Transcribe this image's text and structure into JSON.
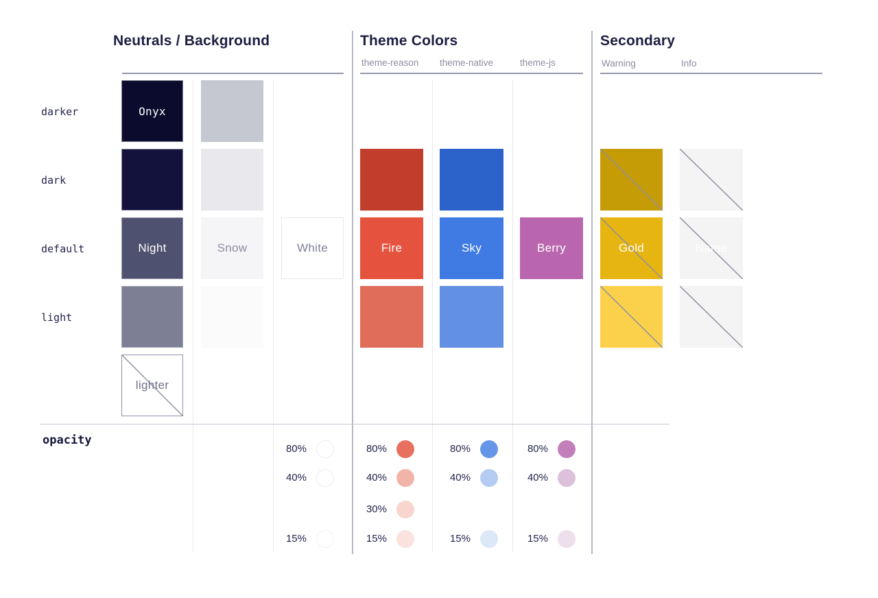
{
  "sections": [
    {
      "id": "neutrals",
      "title": "Neutrals / Background",
      "sub_labels": []
    },
    {
      "id": "theme",
      "title": "Theme Colors",
      "sub_labels": [
        "theme-reason",
        "theme-native",
        "theme-js"
      ]
    },
    {
      "id": "secondary",
      "title": "Secondary",
      "sub_labels": [
        "Warning",
        "Info"
      ]
    }
  ],
  "row_labels": [
    "darker",
    "dark",
    "default",
    "light"
  ],
  "opacity_label": "opacity",
  "swatches": [
    {
      "col": "n1",
      "row": "darker",
      "color": "#0B0B2D",
      "label": "Onyx",
      "label_color": "#FFFFFF",
      "mono_label": true,
      "bordered": true
    },
    {
      "col": "n1",
      "row": "dark",
      "color": "#12123C",
      "bordered": true
    },
    {
      "col": "n1",
      "row": "default",
      "color": "#4F5170",
      "label": "Night",
      "label_color": "#FFFFFF",
      "bordered": true
    },
    {
      "col": "n1",
      "row": "light",
      "color": "#7D7F95",
      "bordered": true
    },
    {
      "col": "n1",
      "row": "lighter",
      "color": "#FFFFFF",
      "label": "lighter",
      "label_color": "#6F7289",
      "outline": "#8E90A8",
      "diagonal": true
    },
    {
      "col": "n2",
      "row": "darker",
      "color": "#C5C7D1"
    },
    {
      "col": "n2",
      "row": "dark",
      "color": "#E9E9ED"
    },
    {
      "col": "n2",
      "row": "default",
      "color": "#F5F5F7",
      "label": "Snow",
      "label_color": "#8B8DA0"
    },
    {
      "col": "n2",
      "row": "light",
      "color": "#FBFBFC"
    },
    {
      "col": "n3",
      "row": "default",
      "color": "#FFFFFF",
      "label": "White",
      "label_color": "#7E819A",
      "outline": "#E8E8ED"
    },
    {
      "col": "t1",
      "row": "dark",
      "color": "#C13E2D"
    },
    {
      "col": "t1",
      "row": "default",
      "color": "#E5523D",
      "label": "Fire",
      "label_color": "#FFFFFF"
    },
    {
      "col": "t1",
      "row": "light",
      "color": "#E06C5A"
    },
    {
      "col": "t2",
      "row": "dark",
      "color": "#2C63CA"
    },
    {
      "col": "t2",
      "row": "default",
      "color": "#3F7BE2",
      "label": "Sky",
      "label_color": "#FFFFFF"
    },
    {
      "col": "t2",
      "row": "light",
      "color": "#6290E3"
    },
    {
      "col": "t3",
      "row": "default",
      "color": "#B966AE",
      "label": "Berry",
      "label_color": "#FFFFFF"
    },
    {
      "col": "s1",
      "row": "dark",
      "color": "#C69C06",
      "diagonal": true
    },
    {
      "col": "s1",
      "row": "default",
      "color": "#E6B511",
      "label": "Gold",
      "label_color": "#FFFFFF",
      "diagonal": true
    },
    {
      "col": "s1",
      "row": "light",
      "color": "#FBD14B",
      "diagonal": true
    },
    {
      "col": "s2",
      "row": "dark",
      "color": "#F4F4F5",
      "diagonal": true
    },
    {
      "col": "s2",
      "row": "default",
      "color": "#F4F4F5",
      "label": "Name",
      "label_color": "#FFFFFF",
      "diagonal": true
    },
    {
      "col": "s2",
      "row": "light",
      "color": "#F4F4F5",
      "diagonal": true
    }
  ],
  "opacity_groups": [
    {
      "col": "n3",
      "dots": [
        {
          "pct": "80%",
          "color": "#FFFFFF",
          "ring": "#EDEDF1"
        },
        {
          "pct": "40%",
          "color": "#FFFFFF",
          "ring": "#EDEDF1"
        },
        {
          "pct": "15%",
          "color": "#FFFFFF",
          "ring": "#F1F1F3"
        }
      ]
    },
    {
      "col": "t1",
      "dots": [
        {
          "pct": "80%",
          "color": "#E7705F"
        },
        {
          "pct": "40%",
          "color": "#F2B3A9"
        },
        {
          "pct": "30%",
          "color": "#F8D6CF"
        },
        {
          "pct": "15%",
          "color": "#FAE2DE"
        }
      ]
    },
    {
      "col": "t2",
      "dots": [
        {
          "pct": "80%",
          "color": "#6596E8"
        },
        {
          "pct": "40%",
          "color": "#B4CBF2"
        },
        {
          "pct": "15%",
          "color": "#DCE7F8"
        }
      ]
    },
    {
      "col": "t3",
      "dots": [
        {
          "pct": "80%",
          "color": "#C27FBA"
        },
        {
          "pct": "40%",
          "color": "#DDC0DA"
        },
        {
          "pct": "15%",
          "color": "#EEDFEC"
        }
      ]
    }
  ],
  "ui_colors": {
    "heading_text": "#1D1D42",
    "sub_label_text": "#8B8D9F",
    "row_label_text": "#23234D",
    "diagonal_line": "#8F90A0",
    "section_divider": "#B7B8C6",
    "column_divider": "#E8E8EE",
    "heading_rule": "#9496AB",
    "opacity_rule": "#C6C7D4"
  }
}
